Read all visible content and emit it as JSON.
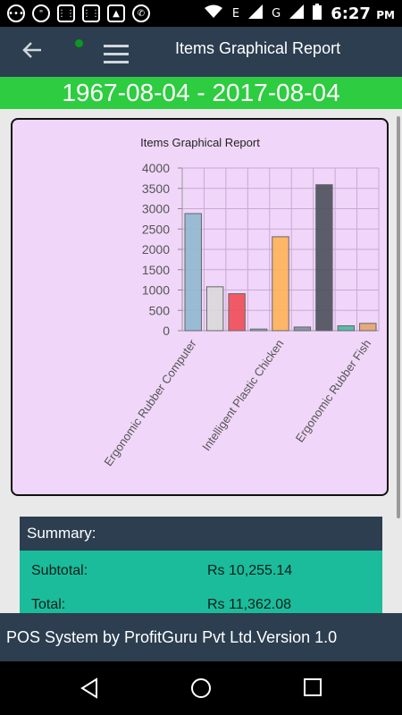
{
  "status_bar": {
    "time": "6:27",
    "ampm": "PM",
    "network_labels": [
      "E",
      "G"
    ]
  },
  "app_bar": {
    "title": "Items Graphical Report"
  },
  "date_range": "1967-08-04 - 2017-08-04",
  "chart_data": {
    "type": "bar",
    "title": "Items Graphical Report",
    "categories": [
      "Ergonomic Rubber Computer",
      "",
      "",
      "",
      "Intelligent Plastic Chicken",
      "",
      "",
      "",
      "Ergonomic Rubber Fish"
    ],
    "tick_labels": [
      "Ergonomic Rubber Computer",
      "Intelligent Plastic Chicken",
      "Ergonomic Rubber Fish"
    ],
    "values": [
      2880,
      1080,
      910,
      40,
      2310,
      90,
      3590,
      120,
      180
    ],
    "colors": [
      "#8fb8cf",
      "#d9d9d9",
      "#ef4c56",
      "#7fb7c9",
      "#ffb257",
      "#7d8ea0",
      "#4a505a",
      "#49b8a0",
      "#e3a56c"
    ],
    "ylim": [
      0,
      4000
    ],
    "yticks": [
      0,
      500,
      1000,
      1500,
      2000,
      2500,
      3000,
      3500,
      4000
    ],
    "grid": true,
    "legend": "none"
  },
  "summary": {
    "heading": "Summary:",
    "rows": [
      {
        "label": "Subtotal:",
        "value": "Rs 10,255.14"
      },
      {
        "label": "Total:",
        "value": "Rs 11,362.08"
      }
    ]
  },
  "footer": "POS System by ProfitGuru Pvt Ltd.Version 1.0"
}
